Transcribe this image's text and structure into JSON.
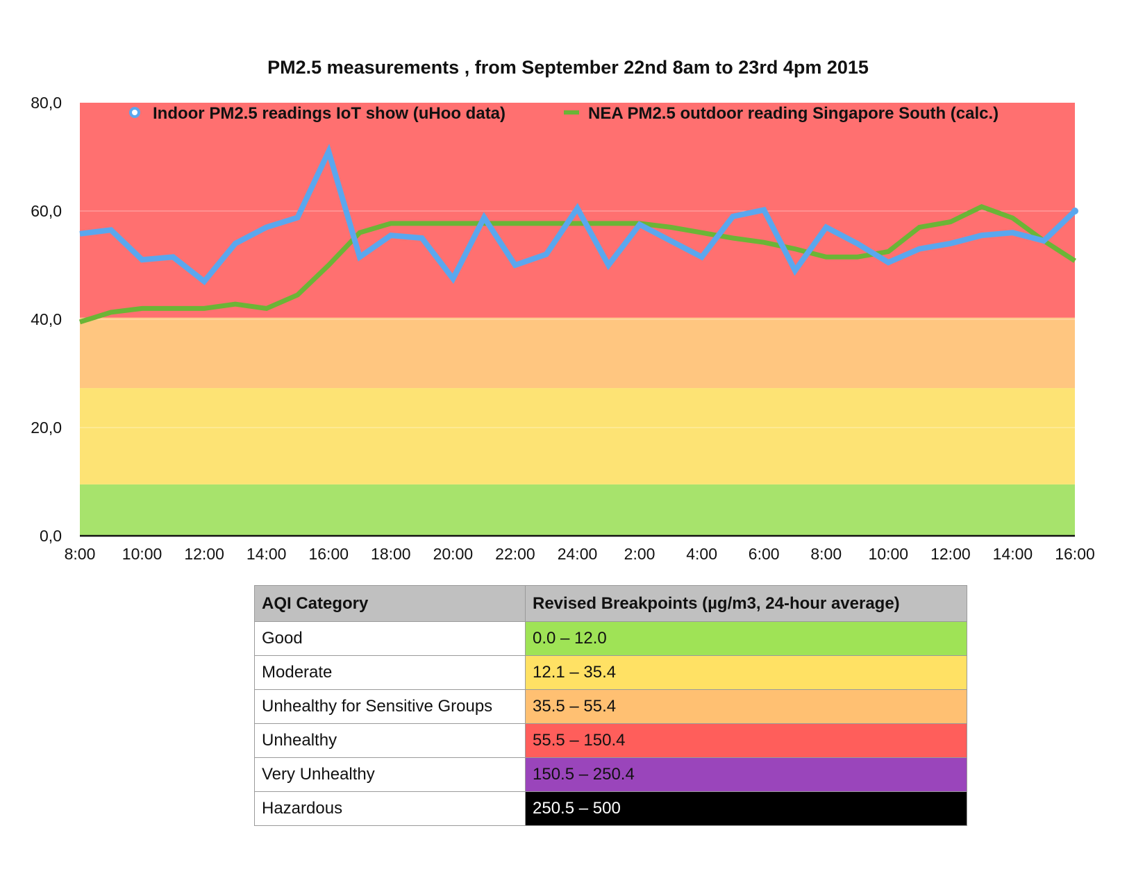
{
  "chart_data": {
    "type": "line",
    "title": "PM2.5 measurements , from September 22nd 8am to 23rd 4pm 2015",
    "xlabel": "",
    "ylabel": "",
    "ylim": [
      0,
      80
    ],
    "yticks": [
      "0,0",
      "20,0",
      "40,0",
      "60,0",
      "80,0"
    ],
    "ytick_values": [
      0,
      20,
      40,
      60,
      80
    ],
    "grid": true,
    "legend_position": "top",
    "x_tick_labels": [
      "8:00",
      "10:00",
      "12:00",
      "14:00",
      "16:00",
      "18:00",
      "20:00",
      "22:00",
      "24:00",
      "2:00",
      "4:00",
      "6:00",
      "8:00",
      "10:00",
      "12:00",
      "14:00",
      "16:00"
    ],
    "bands": [
      {
        "from": 0,
        "to": 9.5,
        "color": "#a7e36c"
      },
      {
        "from": 9.5,
        "to": 27.3,
        "color": "#fde374"
      },
      {
        "from": 27.3,
        "to": 40.3,
        "color": "#ffc680"
      },
      {
        "from": 40.3,
        "to": 80,
        "color": "#ff7070"
      }
    ],
    "series": [
      {
        "name": "Indoor PM2.5 readings IoT show (uHoo data)",
        "color": "#5aa7ee",
        "values": [
          55.8,
          56.5,
          51.0,
          51.5,
          47.0,
          54.0,
          57.0,
          58.8,
          71.0,
          51.5,
          55.5,
          55.0,
          47.5,
          58.8,
          50.0,
          52.0,
          60.5,
          50.0,
          57.5,
          54.5,
          51.5,
          59.0,
          60.2,
          49.0,
          57.0,
          54.0,
          50.5,
          53.0,
          54.0,
          55.5,
          56.0,
          54.5,
          60.0
        ]
      },
      {
        "name": "NEA PM2.5 outdoor reading Singapore South (calc.)",
        "color": "#6bb536",
        "values": [
          39.5,
          41.3,
          42.0,
          42.0,
          42.0,
          42.8,
          42.0,
          44.5,
          50.0,
          56.0,
          57.7,
          57.7,
          57.7,
          57.7,
          57.7,
          57.7,
          57.7,
          57.7,
          57.7,
          57.0,
          56.0,
          55.0,
          54.2,
          53.0,
          51.5,
          51.5,
          52.5,
          57.0,
          58.0,
          60.8,
          58.7,
          54.5,
          50.8
        ]
      }
    ]
  },
  "aqi_table": {
    "headers": [
      "AQI Category",
      "Revised Breakpoints (µg/m3, 24-hour average)"
    ],
    "rows": [
      {
        "category": "Good",
        "range": "0.0 – 12.0",
        "color": "#9fe356",
        "text_color": "#111111"
      },
      {
        "category": "Moderate",
        "range": "12.1 – 35.4",
        "color": "#ffe164",
        "text_color": "#111111"
      },
      {
        "category": "Unhealthy for Sensitive Groups",
        "range": "35.5 – 55.4",
        "color": "#ffc072",
        "text_color": "#111111"
      },
      {
        "category": "Unhealthy",
        "range": "55.5 – 150.4",
        "color": "#ff5e5b",
        "text_color": "#111111"
      },
      {
        "category": "Very Unhealthy",
        "range": "150.5 – 250.4",
        "color": "#9a45bb",
        "text_color": "#111111"
      },
      {
        "category": "Hazardous",
        "range": "250.5 – 500",
        "color": "#000000",
        "text_color": "#ffffff"
      }
    ]
  }
}
